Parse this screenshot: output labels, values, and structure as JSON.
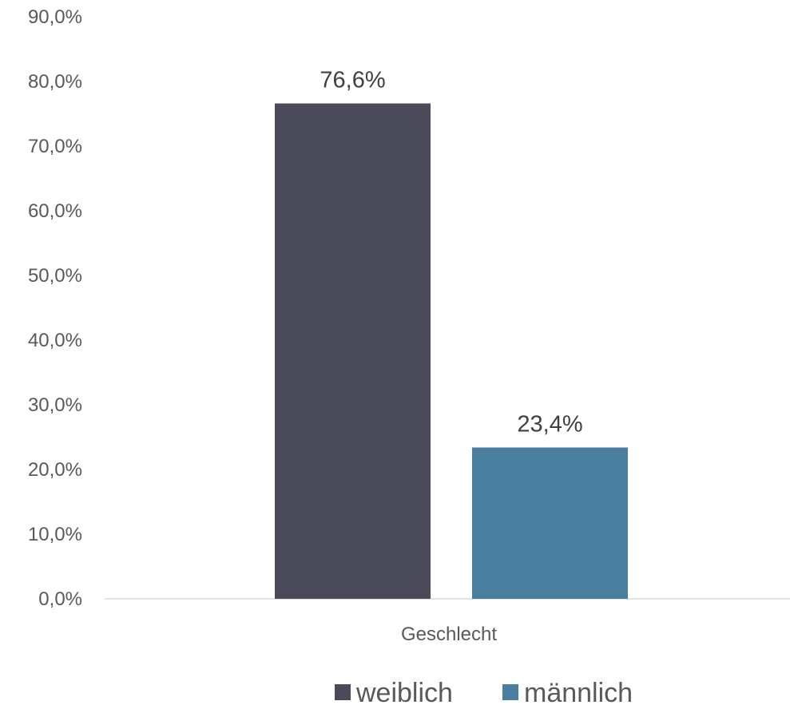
{
  "chart_data": {
    "type": "bar",
    "categories": [
      "Geschlecht"
    ],
    "series": [
      {
        "name": "weiblich",
        "values": [
          76.6
        ],
        "label": "76,6%",
        "color": "#4a4a5a"
      },
      {
        "name": "männlich",
        "values": [
          23.4
        ],
        "label": "23,4%",
        "color": "#4a7e9e"
      }
    ],
    "ylim": [
      0,
      90
    ],
    "yticks": [
      "0,0%",
      "10,0%",
      "20,0%",
      "30,0%",
      "40,0%",
      "50,0%",
      "60,0%",
      "70,0%",
      "80,0%",
      "90,0%"
    ],
    "grid": false,
    "legend_position": "bottom",
    "title": "",
    "xlabel": "",
    "ylabel": ""
  }
}
